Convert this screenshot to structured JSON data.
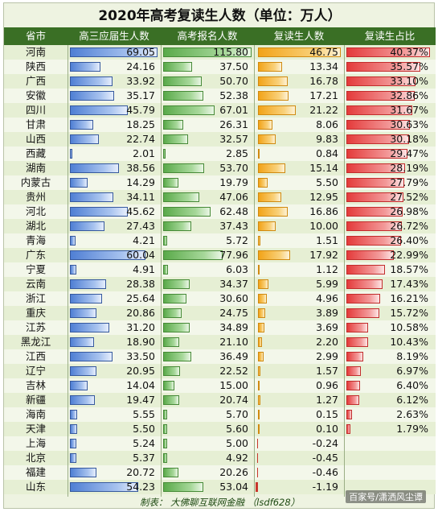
{
  "title": "2020年高考复读生人数（单位：万人）",
  "footer": {
    "caption": "制表： 大佛聊互联网金融 （lsdf628）",
    "source_mark": "百家号/潇洒风尘谭"
  },
  "chart_data": {
    "type": "table",
    "columns": [
      "省市",
      "高三应届生人数",
      "高考报名人数",
      "复读生人数",
      "复读生占比"
    ],
    "colors": {
      "header_bg": "#3a6f25",
      "fresh_bar": "#4f7fd4",
      "applicants_bar": "#5aaa4a",
      "repeaters_bar": "#f2a318",
      "ratio_bar": "#e43b3b",
      "negative_bar": "#c8362c"
    },
    "rows": [
      {
        "province": "河南",
        "fresh": "69.05",
        "applicants": "115.80",
        "repeaters": "46.75",
        "ratio": "40.37%"
      },
      {
        "province": "陕西",
        "fresh": "24.16",
        "applicants": "37.50",
        "repeaters": "13.34",
        "ratio": "35.57%"
      },
      {
        "province": "广西",
        "fresh": "33.92",
        "applicants": "50.70",
        "repeaters": "16.78",
        "ratio": "33.10%"
      },
      {
        "province": "安徽",
        "fresh": "35.17",
        "applicants": "52.38",
        "repeaters": "17.21",
        "ratio": "32.86%"
      },
      {
        "province": "四川",
        "fresh": "45.79",
        "applicants": "67.01",
        "repeaters": "21.22",
        "ratio": "31.67%"
      },
      {
        "province": "甘肃",
        "fresh": "18.25",
        "applicants": "26.31",
        "repeaters": "8.06",
        "ratio": "30.63%"
      },
      {
        "province": "山西",
        "fresh": "22.74",
        "applicants": "32.57",
        "repeaters": "9.83",
        "ratio": "30.18%"
      },
      {
        "province": "西藏",
        "fresh": "2.01",
        "applicants": "2.85",
        "repeaters": "0.84",
        "ratio": "29.47%"
      },
      {
        "province": "湖南",
        "fresh": "38.56",
        "applicants": "53.70",
        "repeaters": "15.14",
        "ratio": "28.19%"
      },
      {
        "province": "内蒙古",
        "fresh": "14.29",
        "applicants": "19.79",
        "repeaters": "5.50",
        "ratio": "27.79%"
      },
      {
        "province": "贵州",
        "fresh": "34.11",
        "applicants": "47.06",
        "repeaters": "12.95",
        "ratio": "27.52%"
      },
      {
        "province": "河北",
        "fresh": "45.62",
        "applicants": "62.48",
        "repeaters": "16.86",
        "ratio": "26.98%"
      },
      {
        "province": "湖北",
        "fresh": "27.43",
        "applicants": "37.43",
        "repeaters": "10.00",
        "ratio": "26.72%"
      },
      {
        "province": "青海",
        "fresh": "4.21",
        "applicants": "5.72",
        "repeaters": "1.51",
        "ratio": "26.40%"
      },
      {
        "province": "广东",
        "fresh": "60.04",
        "applicants": "77.96",
        "repeaters": "17.92",
        "ratio": "22.99%"
      },
      {
        "province": "宁夏",
        "fresh": "4.91",
        "applicants": "6.03",
        "repeaters": "1.12",
        "ratio": "18.57%"
      },
      {
        "province": "云南",
        "fresh": "28.38",
        "applicants": "34.37",
        "repeaters": "5.99",
        "ratio": "17.43%"
      },
      {
        "province": "浙江",
        "fresh": "25.64",
        "applicants": "30.60",
        "repeaters": "4.96",
        "ratio": "16.21%"
      },
      {
        "province": "重庆",
        "fresh": "20.86",
        "applicants": "24.75",
        "repeaters": "3.89",
        "ratio": "15.72%"
      },
      {
        "province": "江苏",
        "fresh": "31.20",
        "applicants": "34.89",
        "repeaters": "3.69",
        "ratio": "10.58%"
      },
      {
        "province": "黑龙江",
        "fresh": "18.90",
        "applicants": "21.10",
        "repeaters": "2.20",
        "ratio": "10.43%"
      },
      {
        "province": "江西",
        "fresh": "33.50",
        "applicants": "36.49",
        "repeaters": "2.99",
        "ratio": "8.19%"
      },
      {
        "province": "辽宁",
        "fresh": "20.95",
        "applicants": "22.52",
        "repeaters": "1.57",
        "ratio": "6.97%"
      },
      {
        "province": "吉林",
        "fresh": "14.04",
        "applicants": "15.00",
        "repeaters": "0.96",
        "ratio": "6.40%"
      },
      {
        "province": "新疆",
        "fresh": "19.47",
        "applicants": "20.74",
        "repeaters": "1.27",
        "ratio": "6.12%"
      },
      {
        "province": "海南",
        "fresh": "5.55",
        "applicants": "5.70",
        "repeaters": "0.15",
        "ratio": "2.63%"
      },
      {
        "province": "天津",
        "fresh": "5.50",
        "applicants": "5.60",
        "repeaters": "0.10",
        "ratio": "1.79%"
      },
      {
        "province": "上海",
        "fresh": "5.24",
        "applicants": "5.00",
        "repeaters": "-0.24",
        "ratio": ""
      },
      {
        "province": "北京",
        "fresh": "5.37",
        "applicants": "4.92",
        "repeaters": "-0.45",
        "ratio": ""
      },
      {
        "province": "福建",
        "fresh": "20.72",
        "applicants": "20.26",
        "repeaters": "-0.46",
        "ratio": ""
      },
      {
        "province": "山东",
        "fresh": "54.23",
        "applicants": "53.04",
        "repeaters": "-1.19",
        "ratio": ""
      }
    ]
  }
}
